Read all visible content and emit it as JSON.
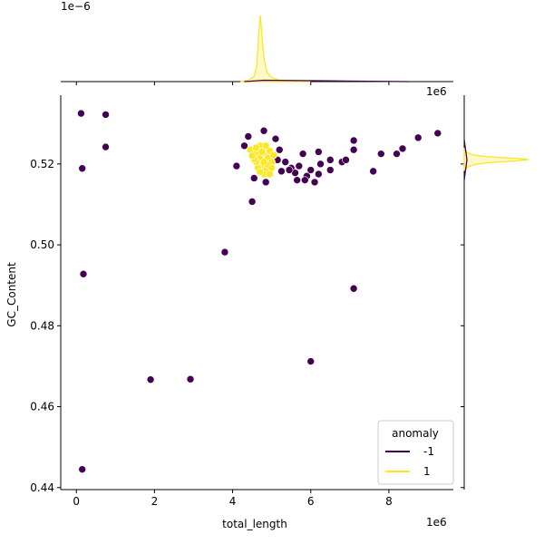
{
  "chart_data": {
    "type": "scatter",
    "title": "",
    "xlabel": "total_length",
    "ylabel": "GC_Content",
    "x_offset_label": "1e6",
    "y_offset_label": "",
    "top_marginal_offset_label": "1e−6",
    "right_marginal_offset_label": "1e6",
    "xlim": [
      -0.4,
      9.65
    ],
    "ylim": [
      0.4395,
      0.537
    ],
    "x_ticks": [
      0,
      2,
      4,
      6,
      8
    ],
    "x_tick_labels": [
      "0",
      "2",
      "4",
      "6",
      "8"
    ],
    "y_ticks": [
      0.44,
      0.46,
      0.48,
      0.5,
      0.52
    ],
    "y_tick_labels": [
      "0.44",
      "0.46",
      "0.48",
      "0.50",
      "0.52"
    ],
    "grid": false,
    "legend": {
      "title": "anomaly",
      "placement": "lower-right",
      "entries": [
        {
          "label": "-1",
          "color": "#440154"
        },
        {
          "label": "1",
          "color": "#fde725"
        }
      ]
    },
    "series": [
      {
        "anomaly": "-1",
        "color": "#440154",
        "points": [
          [
            0.12,
            0.5325
          ],
          [
            0.75,
            0.5322
          ],
          [
            0.15,
            0.5189
          ],
          [
            0.75,
            0.5242
          ],
          [
            0.18,
            0.4928
          ],
          [
            1.9,
            0.4667
          ],
          [
            2.92,
            0.4668
          ],
          [
            0.15,
            0.4445
          ],
          [
            3.8,
            0.4982
          ],
          [
            4.5,
            0.5107
          ],
          [
            7.1,
            0.4892
          ],
          [
            6.0,
            0.4712
          ],
          [
            4.1,
            0.5195
          ],
          [
            4.4,
            0.5268
          ],
          [
            4.55,
            0.5165
          ],
          [
            4.85,
            0.5155
          ],
          [
            4.65,
            0.5238
          ],
          [
            4.8,
            0.5282
          ],
          [
            5.1,
            0.5262
          ],
          [
            5.2,
            0.5235
          ],
          [
            5.35,
            0.5205
          ],
          [
            5.5,
            0.519
          ],
          [
            5.6,
            0.5178
          ],
          [
            5.7,
            0.5195
          ],
          [
            5.8,
            0.5225
          ],
          [
            5.9,
            0.517
          ],
          [
            5.85,
            0.516
          ],
          [
            6.0,
            0.5185
          ],
          [
            6.1,
            0.5155
          ],
          [
            6.2,
            0.5175
          ],
          [
            6.2,
            0.523
          ],
          [
            6.25,
            0.52
          ],
          [
            6.5,
            0.521
          ],
          [
            6.5,
            0.5185
          ],
          [
            6.8,
            0.5205
          ],
          [
            6.9,
            0.521
          ],
          [
            7.1,
            0.5258
          ],
          [
            7.1,
            0.5235
          ],
          [
            7.6,
            0.5182
          ],
          [
            7.8,
            0.5225
          ],
          [
            8.2,
            0.5225
          ],
          [
            8.35,
            0.5238
          ],
          [
            8.75,
            0.5265
          ],
          [
            9.25,
            0.5276
          ],
          [
            4.3,
            0.5245
          ],
          [
            4.95,
            0.5225
          ],
          [
            5.15,
            0.521
          ],
          [
            5.45,
            0.5185
          ],
          [
            5.25,
            0.5182
          ],
          [
            5.65,
            0.516
          ]
        ]
      },
      {
        "anomaly": "1",
        "color": "#fde725",
        "points": [
          [
            4.45,
            0.5235
          ],
          [
            4.6,
            0.5225
          ],
          [
            4.7,
            0.5215
          ],
          [
            4.8,
            0.5228
          ],
          [
            4.9,
            0.5215
          ],
          [
            5.0,
            0.5205
          ],
          [
            4.75,
            0.5198
          ],
          [
            4.85,
            0.5185
          ],
          [
            4.6,
            0.5205
          ],
          [
            4.95,
            0.5232
          ],
          [
            4.7,
            0.5245
          ],
          [
            5.05,
            0.5222
          ],
          [
            4.55,
            0.5212
          ],
          [
            4.9,
            0.5198
          ],
          [
            4.8,
            0.5175
          ],
          [
            4.65,
            0.519
          ],
          [
            4.75,
            0.523
          ],
          [
            5.0,
            0.519
          ],
          [
            4.85,
            0.5245
          ],
          [
            4.5,
            0.522
          ],
          [
            4.7,
            0.518
          ],
          [
            4.95,
            0.5175
          ],
          [
            4.6,
            0.524
          ],
          [
            4.8,
            0.5205
          ]
        ]
      }
    ],
    "marginal_top": {
      "colors": [
        "#440154",
        "#fde725"
      ],
      "curve_x": [
        4.2,
        4.4,
        4.55,
        4.62,
        4.67,
        4.71,
        4.75,
        4.8,
        4.88,
        5.0,
        5.2,
        5.5,
        6.0
      ],
      "curve_density": [
        0.0,
        0.02,
        0.08,
        0.25,
        0.75,
        1.0,
        0.7,
        0.35,
        0.14,
        0.06,
        0.02,
        0.005,
        0.0
      ]
    },
    "marginal_right": {
      "colors": [
        "#440154",
        "#fde725"
      ],
      "curve_y": [
        0.5185,
        0.5192,
        0.5198,
        0.5203,
        0.5207,
        0.5211,
        0.5214,
        0.5218,
        0.5223,
        0.523,
        0.524
      ],
      "curve_density": [
        0.0,
        0.05,
        0.15,
        0.35,
        0.75,
        1.0,
        0.8,
        0.35,
        0.12,
        0.03,
        0.0
      ]
    }
  }
}
